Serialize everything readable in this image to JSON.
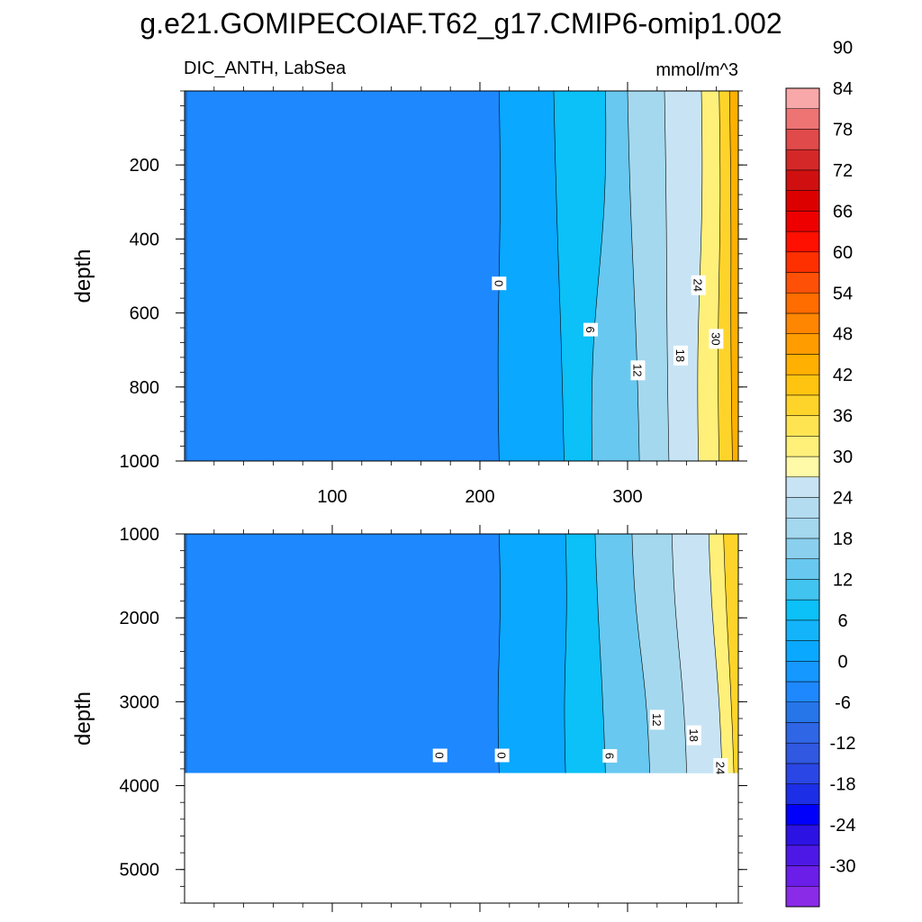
{
  "title": "g.e21.GOMIPECOIAF.T62_g17.CMIP6-omip1.002",
  "chart_data": {
    "type": "heatmap",
    "variable": "DIC_ANTH, LabSea",
    "units": "mmol/m^3",
    "x_ticks": [
      100,
      200,
      300
    ],
    "x_range": [
      0,
      375
    ],
    "panels": [
      {
        "ylabel": "depth",
        "ylim": [
          0,
          1000
        ],
        "y_ticks": [
          200,
          400,
          600,
          800,
          1000
        ],
        "contour_labels": [
          {
            "text": "0",
            "x": 213,
            "y": 520
          },
          {
            "text": "6",
            "x": 275,
            "y": 645
          },
          {
            "text": "12",
            "x": 307,
            "y": 755
          },
          {
            "text": "18",
            "x": 336,
            "y": 715
          },
          {
            "text": "24",
            "x": 348,
            "y": 525
          },
          {
            "text": "30",
            "x": 360,
            "y": 670
          }
        ]
      },
      {
        "ylabel": "depth",
        "ylim": [
          1000,
          5400
        ],
        "y_ticks": [
          1000,
          2000,
          3000,
          4000,
          5000
        ],
        "bottom_depth": 3850,
        "contour_labels": [
          {
            "text": "0",
            "x": 173,
            "y": 3640
          },
          {
            "text": "0",
            "x": 215,
            "y": 3640
          },
          {
            "text": "6",
            "x": 288,
            "y": 3645
          },
          {
            "text": "12",
            "x": 320,
            "y": 3215
          },
          {
            "text": "18",
            "x": 345,
            "y": 3400
          },
          {
            "text": "24",
            "x": 363,
            "y": 3790
          }
        ]
      }
    ],
    "colorbar": {
      "labels": [
        -30,
        -24,
        -18,
        -12,
        -6,
        0,
        6,
        12,
        18,
        24,
        30,
        36,
        42,
        48,
        54,
        60,
        66,
        72,
        78,
        84,
        90
      ],
      "colors": [
        "#8a2be8",
        "#6a1ee8",
        "#4d18e6",
        "#2d12e4",
        "#0000fb",
        "#1c2ee6",
        "#2a46e4",
        "#3058e0",
        "#2e66e6",
        "#2676ea",
        "#1e88ff",
        "#1598ff",
        "#0aa8ff",
        "#14b4fa",
        "#0cc0f8",
        "#42c4f0",
        "#68c8f0",
        "#8ad0ee",
        "#a4d8ee",
        "#b4dcf0",
        "#c8e4f4",
        "#fffaa8",
        "#fff07a",
        "#ffe452",
        "#ffd42a",
        "#ffc410",
        "#ffb000",
        "#ff9c00",
        "#ff8600",
        "#ff6c00",
        "#ff5008",
        "#ff3000",
        "#ff1000",
        "#ee0000",
        "#dc0000",
        "#d01010",
        "#d42828",
        "#e04a4a",
        "#ee7474",
        "#f8a8a8"
      ]
    },
    "fill_levels": {
      "top": [
        {
          "lo": 0,
          "hi": 6,
          "x_surface": 213,
          "x_deep": 213
        },
        {
          "lo": 6,
          "hi": 12,
          "x_surface": 250,
          "x_deep": 257
        },
        {
          "lo": 12,
          "hi": 18,
          "x_surface": 285,
          "x_deep": 276
        },
        {
          "lo": 18,
          "hi": 24,
          "x_surface": 300,
          "x_deep": 308
        },
        {
          "lo": 24,
          "hi": 30,
          "x_surface": 325,
          "x_deep": 328
        },
        {
          "lo": 30,
          "hi": 36,
          "x_surface": 350,
          "x_deep": 348
        },
        {
          "lo": 36,
          "hi": 42,
          "x_surface": 362,
          "x_deep": 362
        },
        {
          "lo": 42,
          "hi": 48,
          "x_surface": 369,
          "x_deep": 371
        }
      ],
      "bottom": [
        {
          "lo": 0,
          "hi": 6,
          "x_surface": 213,
          "x_deep": 213
        },
        {
          "lo": 6,
          "hi": 12,
          "x_surface": 258,
          "x_deep": 258
        },
        {
          "lo": 12,
          "hi": 18,
          "x_surface": 278,
          "x_deep": 285
        },
        {
          "lo": 18,
          "hi": 24,
          "x_surface": 303,
          "x_deep": 315
        },
        {
          "lo": 24,
          "hi": 30,
          "x_surface": 330,
          "x_deep": 340
        },
        {
          "lo": 30,
          "hi": 36,
          "x_surface": 355,
          "x_deep": 364
        },
        {
          "lo": 36,
          "hi": 42,
          "x_surface": 365,
          "x_deep": 372
        }
      ]
    }
  }
}
